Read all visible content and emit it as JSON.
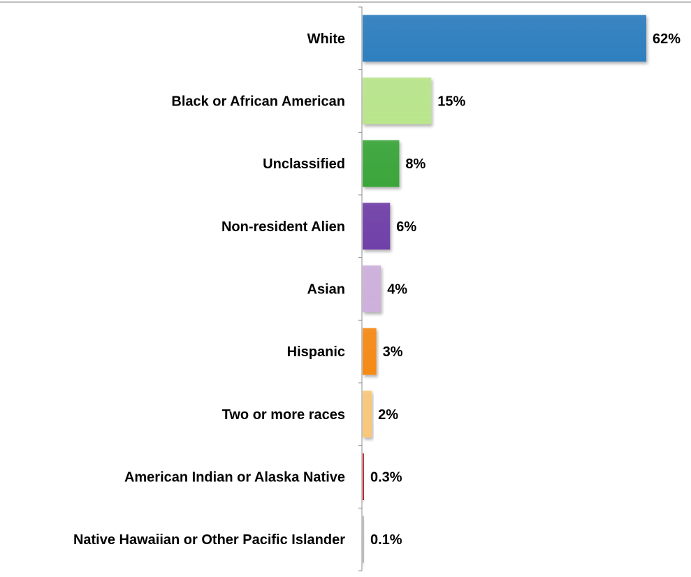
{
  "chart_data": {
    "type": "bar",
    "orientation": "horizontal",
    "categories": [
      "White",
      "Black or African American",
      "Unclassified",
      "Non-resident Alien",
      "Asian",
      "Hispanic",
      "Two or more races",
      "American Indian or Alaska Native",
      "Native Hawaiian or Other Pacific Islander"
    ],
    "values": [
      62,
      15,
      8,
      6,
      4,
      3,
      2,
      0.3,
      0.1
    ],
    "data_labels": [
      "62%",
      "15%",
      "8%",
      "6%",
      "4%",
      "3%",
      "2%",
      "0.3%",
      "0.1%"
    ],
    "colors": [
      "#2E7FBF",
      "#B9E58C",
      "#3AA63A",
      "#7040A8",
      "#CDB0DC",
      "#F58A14",
      "#F9C77A",
      "#C0282E",
      "#B8B8B8"
    ],
    "xlim": [
      0,
      62
    ],
    "grid": false,
    "legend": "none",
    "title": "",
    "xlabel": "",
    "ylabel": ""
  }
}
